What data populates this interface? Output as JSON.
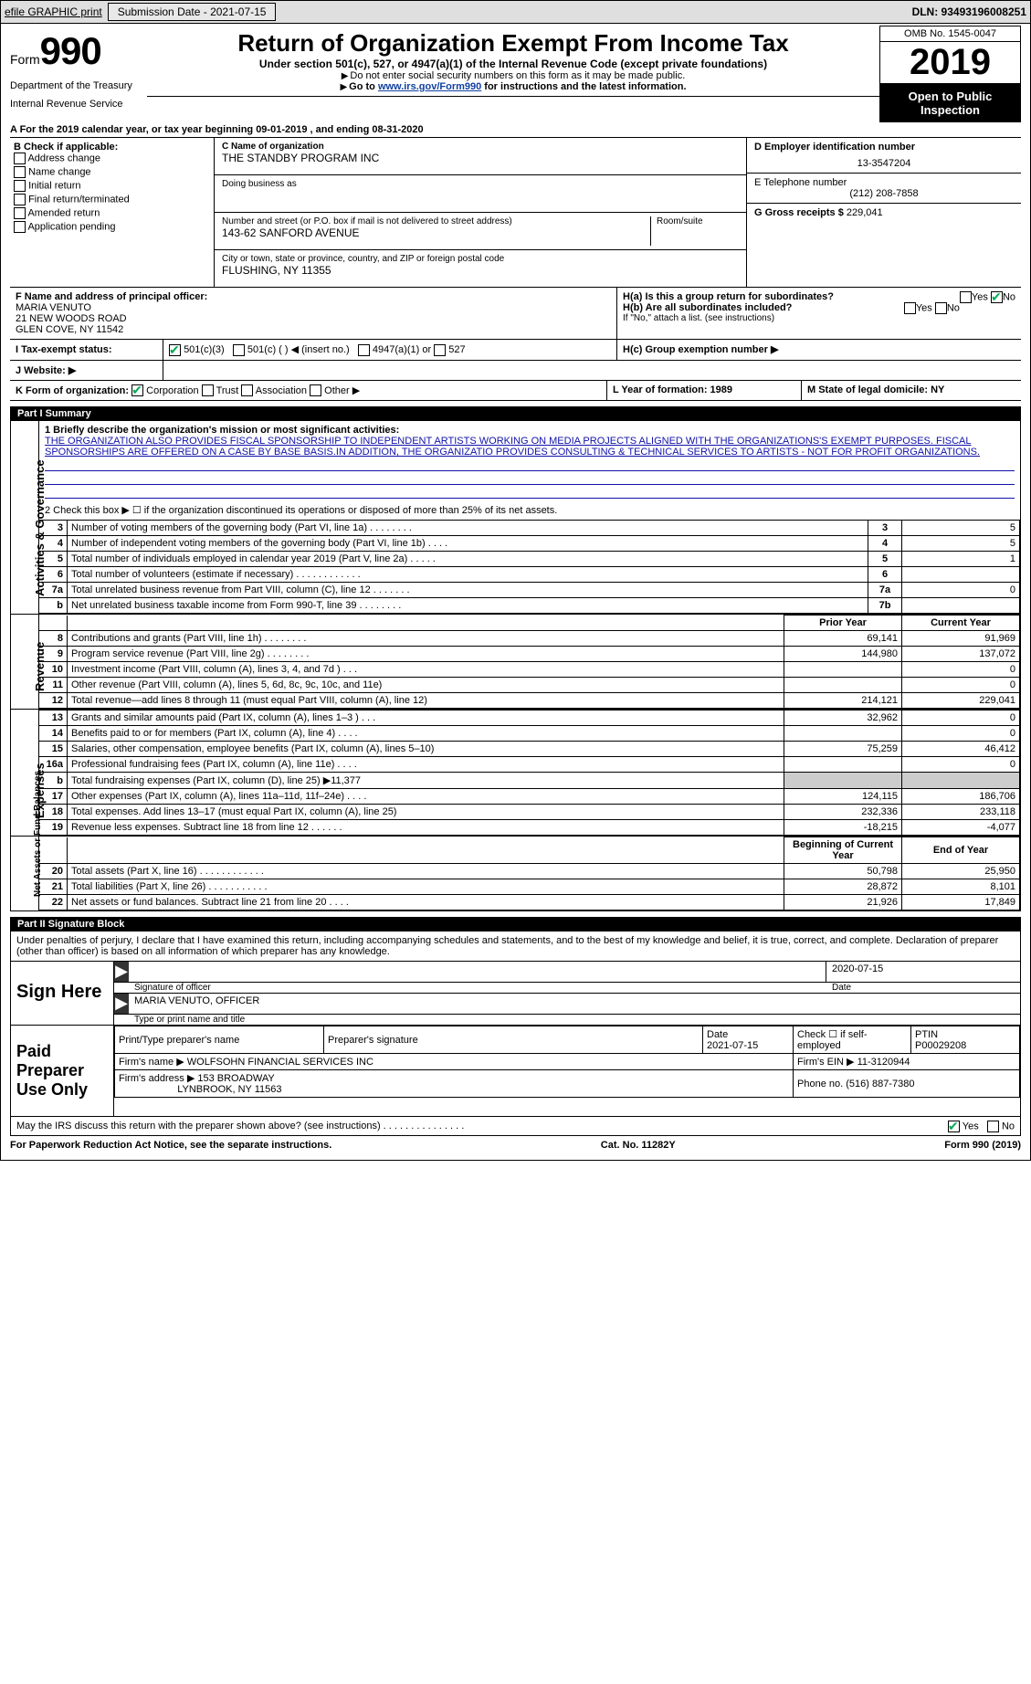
{
  "toolbar": {
    "efile_label": "efile GRAPHIC print",
    "submission_label": "Submission Date - 2021-07-15",
    "dln_label": "DLN: 93493196008251"
  },
  "header": {
    "form_word": "Form",
    "form_num": "990",
    "dept": "Department of the Treasury",
    "irs": "Internal Revenue Service",
    "title": "Return of Organization Exempt From Income Tax",
    "subtitle": "Under section 501(c), 527, or 4947(a)(1) of the Internal Revenue Code (except private foundations)",
    "note1": "Do not enter social security numbers on this form as it may be made public.",
    "note2_pre": "Go to ",
    "note2_link": "www.irs.gov/Form990",
    "note2_post": " for instructions and the latest information.",
    "omb": "OMB No. 1545-0047",
    "year": "2019",
    "open_public": "Open to Public Inspection"
  },
  "period": {
    "line": "A For the 2019 calendar year, or tax year beginning 09-01-2019",
    "end": ", and ending 08-31-2020"
  },
  "boxB": {
    "header": "B Check if applicable:",
    "addr": "Address change",
    "name": "Name change",
    "init": "Initial return",
    "final": "Final return/terminated",
    "amend": "Amended return",
    "app": "Application pending"
  },
  "boxC": {
    "label": "C Name of organization",
    "name": "THE STANDBY PROGRAM INC",
    "dba_label": "Doing business as",
    "street_label": "Number and street (or P.O. box if mail is not delivered to street address)",
    "room_label": "Room/suite",
    "street": "143-62 SANFORD AVENUE",
    "city_label": "City or town, state or province, country, and ZIP or foreign postal code",
    "city": "FLUSHING, NY  11355"
  },
  "boxD": {
    "label": "D Employer identification number",
    "value": "13-3547204"
  },
  "boxE": {
    "label": "E Telephone number",
    "value": "(212) 208-7858"
  },
  "boxG": {
    "label": "G Gross receipts $",
    "value": "229,041"
  },
  "boxF": {
    "label": "F  Name and address of principal officer:",
    "l1": "MARIA VENUTO",
    "l2": "21 NEW WOODS ROAD",
    "l3": "GLEN COVE, NY  11542"
  },
  "boxH": {
    "a": "H(a)  Is this a group return for subordinates?",
    "b": "H(b)  Are all subordinates included?",
    "bnote": "If \"No,\" attach a list. (see instructions)",
    "c": "H(c)  Group exemption number ▶",
    "yes": "Yes",
    "no": "No"
  },
  "rowI": {
    "label": "I    Tax-exempt status:",
    "c3": "501(c)(3)",
    "c": "501(c) (  ) ◀ (insert no.)",
    "a1": "4947(a)(1) or",
    "527": "527"
  },
  "rowJ": {
    "label": "J    Website: ▶"
  },
  "rowK": {
    "label": "K Form of organization:",
    "corp": "Corporation",
    "trust": "Trust",
    "assoc": "Association",
    "other": "Other ▶"
  },
  "rowL": {
    "label": "L Year of formation: 1989"
  },
  "rowM": {
    "label": "M State of legal domicile: NY"
  },
  "part1": {
    "header": "Part I      Summary",
    "tab_gov": "Activities & Governance",
    "tab_rev": "Revenue",
    "tab_exp": "Expenses",
    "tab_net": "Net Assets or Fund Balances",
    "l1_label": "1   Briefly describe the organization's mission or most significant activities:",
    "mission": "THE ORGANIZATION ALSO PROVIDES FISCAL SPONSORSHIP TO INDEPENDENT ARTISTS WORKING ON MEDIA PROJECTS ALIGNED WITH THE ORGANIZATIONS'S EXEMPT PURPOSES. FISCAL SPONSORSHIPS ARE OFFERED ON A CASE BY BASE BASIS.IN ADDITION, THE ORGANIZATIO PROVIDES CONSULTING & TECHNICAL SERVICES TO ARTISTS - NOT FOR PROFIT ORGANIZATIONS.",
    "l2": "2   Check this box ▶ ☐ if the organization discontinued its operations or disposed of more than 25% of its net assets.",
    "rows_gov": [
      {
        "n": "3",
        "d": "Number of voting members of the governing body (Part VI, line 1a)   .   .   .   .   .   .   .   .",
        "b": "3",
        "v": "5"
      },
      {
        "n": "4",
        "d": "Number of independent voting members of the governing body (Part VI, line 1b)   .   .   .   .",
        "b": "4",
        "v": "5"
      },
      {
        "n": "5",
        "d": "Total number of individuals employed in calendar year 2019 (Part V, line 2a)   .   .   .   .   .",
        "b": "5",
        "v": "1"
      },
      {
        "n": "6",
        "d": "Total number of volunteers (estimate if necessary)   .   .   .   .   .   .   .   .   .   .   .   .",
        "b": "6",
        "v": ""
      },
      {
        "n": "7a",
        "d": "Total unrelated business revenue from Part VIII, column (C), line 12   .   .   .   .   .   .   .",
        "b": "7a",
        "v": "0"
      },
      {
        "n": "b",
        "d": "Net unrelated business taxable income from Form 990-T, line 39   .   .   .   .   .   .   .   .",
        "b": "7b",
        "v": ""
      }
    ],
    "col_prior": "Prior Year",
    "col_curr": "Current Year",
    "rows_rev": [
      {
        "n": "8",
        "d": "Contributions and grants (Part VIII, line 1h)   .   .   .   .   .   .   .   .",
        "p": "69,141",
        "c": "91,969"
      },
      {
        "n": "9",
        "d": "Program service revenue (Part VIII, line 2g)   .   .   .   .   .   .   .   .",
        "p": "144,980",
        "c": "137,072"
      },
      {
        "n": "10",
        "d": "Investment income (Part VIII, column (A), lines 3, 4, and 7d )   .   .   .",
        "p": "",
        "c": "0"
      },
      {
        "n": "11",
        "d": "Other revenue (Part VIII, column (A), lines 5, 6d, 8c, 9c, 10c, and 11e)",
        "p": "",
        "c": "0"
      },
      {
        "n": "12",
        "d": "Total revenue—add lines 8 through 11 (must equal Part VIII, column (A), line 12)",
        "p": "214,121",
        "c": "229,041"
      }
    ],
    "rows_exp": [
      {
        "n": "13",
        "d": "Grants and similar amounts paid (Part IX, column (A), lines 1–3 )   .   .   .",
        "p": "32,962",
        "c": "0"
      },
      {
        "n": "14",
        "d": "Benefits paid to or for members (Part IX, column (A), line 4)   .   .   .   .",
        "p": "",
        "c": "0"
      },
      {
        "n": "15",
        "d": "Salaries, other compensation, employee benefits (Part IX, column (A), lines 5–10)",
        "p": "75,259",
        "c": "46,412"
      },
      {
        "n": "16a",
        "d": "Professional fundraising fees (Part IX, column (A), line 11e)   .   .   .   .",
        "p": "",
        "c": "0"
      },
      {
        "n": "b",
        "d": "Total fundraising expenses (Part IX, column (D), line 25) ▶11,377",
        "p": "—",
        "c": "—"
      },
      {
        "n": "17",
        "d": "Other expenses (Part IX, column (A), lines 11a–11d, 11f–24e)   .   .   .   .",
        "p": "124,115",
        "c": "186,706"
      },
      {
        "n": "18",
        "d": "Total expenses. Add lines 13–17 (must equal Part IX, column (A), line 25)",
        "p": "232,336",
        "c": "233,118"
      },
      {
        "n": "19",
        "d": "Revenue less expenses. Subtract line 18 from line 12   .   .   .   .   .   .",
        "p": "-18,215",
        "c": "-4,077"
      }
    ],
    "col_beg": "Beginning of Current Year",
    "col_end": "End of Year",
    "rows_net": [
      {
        "n": "20",
        "d": "Total assets (Part X, line 16)   .   .   .   .   .   .   .   .   .   .   .   .",
        "p": "50,798",
        "c": "25,950"
      },
      {
        "n": "21",
        "d": "Total liabilities (Part X, line 26)   .   .   .   .   .   .   .   .   .   .   .",
        "p": "28,872",
        "c": "8,101"
      },
      {
        "n": "22",
        "d": "Net assets or fund balances. Subtract line 21 from line 20   .   .   .   .",
        "p": "21,926",
        "c": "17,849"
      }
    ]
  },
  "part2": {
    "header": "Part II     Signature Block",
    "decl": "Under penalties of perjury, I declare that I have examined this return, including accompanying schedules and statements, and to the best of my knowledge and belief, it is true, correct, and complete. Declaration of preparer (other than officer) is based on all information of which preparer has any knowledge.",
    "sign_here": "Sign Here",
    "sig_officer": "Signature of officer",
    "date_val": "2020-07-15",
    "date": "Date",
    "name_line": "MARIA VENUTO, OFFICER",
    "name_label": "Type or print name and title",
    "paid": "Paid Preparer Use Only",
    "col_print": "Print/Type preparer's name",
    "col_sig": "Preparer's signature",
    "col_date": "Date",
    "date2": "2021-07-15",
    "check_self": "Check ☐ if self-employed",
    "ptin_label": "PTIN",
    "ptin": "P00029208",
    "firm_name_l": "Firm's name    ▶",
    "firm_name": "WOLFSOHN FINANCIAL SERVICES INC",
    "firm_ein_l": "Firm's EIN ▶",
    "firm_ein": "11-3120944",
    "firm_addr_l": "Firm's address ▶",
    "firm_addr1": "153 BROADWAY",
    "firm_addr2": "LYNBROOK, NY  11563",
    "phone_l": "Phone no.",
    "phone": "(516) 887-7380",
    "may_irs": "May the IRS discuss this return with the preparer shown above? (see instructions)   .   .   .   .   .   .   .   .   .   .   .   .   .   .   ."
  },
  "footer": {
    "left": "For Paperwork Reduction Act Notice, see the separate instructions.",
    "mid": "Cat. No. 11282Y",
    "right": "Form 990 (2019)"
  }
}
